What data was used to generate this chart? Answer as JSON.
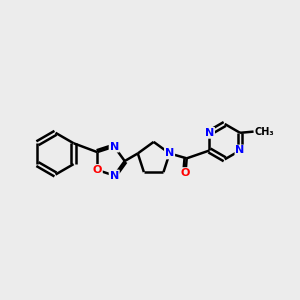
{
  "bg_color": "#ececec",
  "atom_color_N": "#0000ff",
  "atom_color_O": "#ff0000",
  "bond_color": "#000000",
  "bond_width": 1.8,
  "dbo": 0.12,
  "font_size": 8,
  "fig_size": [
    3.0,
    3.0
  ],
  "dpi": 100,
  "xlim": [
    0,
    12
  ],
  "ylim": [
    0,
    12
  ]
}
